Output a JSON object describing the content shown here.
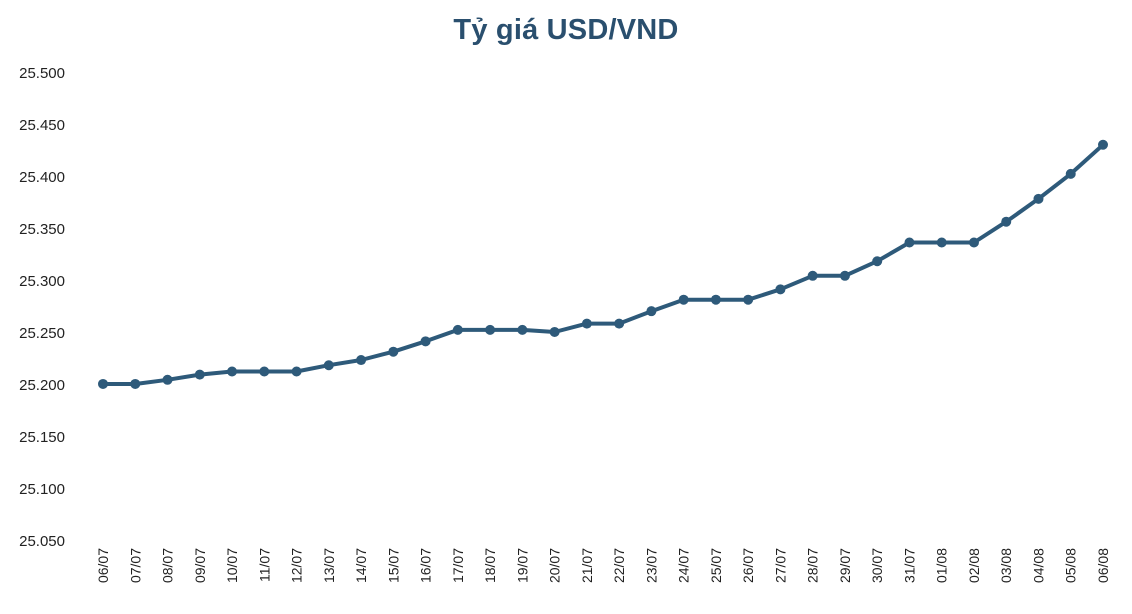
{
  "chart_data": {
    "type": "line",
    "title": "Tỷ giá USD/VND",
    "xlabel": "",
    "ylabel": "",
    "ylim": [
      25050,
      25500
    ],
    "yticks": [
      25050,
      25100,
      25150,
      25200,
      25250,
      25300,
      25350,
      25400,
      25450,
      25500
    ],
    "ytick_labels": [
      "25.050",
      "25.100",
      "25.150",
      "25.200",
      "25.250",
      "25.300",
      "25.350",
      "25.400",
      "25.450",
      "25.500"
    ],
    "grid": false,
    "legend": "none",
    "color": "#2e5a7a",
    "categories": [
      "06/07",
      "07/07",
      "08/07",
      "09/07",
      "10/07",
      "11/07",
      "12/07",
      "13/07",
      "14/07",
      "15/07",
      "16/07",
      "17/07",
      "18/07",
      "19/07",
      "20/07",
      "21/07",
      "22/07",
      "23/07",
      "24/07",
      "25/07",
      "26/07",
      "27/07",
      "28/07",
      "29/07",
      "30/07",
      "31/07",
      "01/08",
      "02/08",
      "03/08",
      "04/08",
      "05/08",
      "06/08"
    ],
    "values": [
      25201,
      25201,
      25205,
      25210,
      25213,
      25213,
      25213,
      25219,
      25224,
      25232,
      25242,
      25253,
      25253,
      25253,
      25251,
      25259,
      25259,
      25271,
      25282,
      25282,
      25282,
      25292,
      25305,
      25305,
      25319,
      25337,
      25337,
      25337,
      25357,
      25379,
      25403,
      25431
    ]
  }
}
